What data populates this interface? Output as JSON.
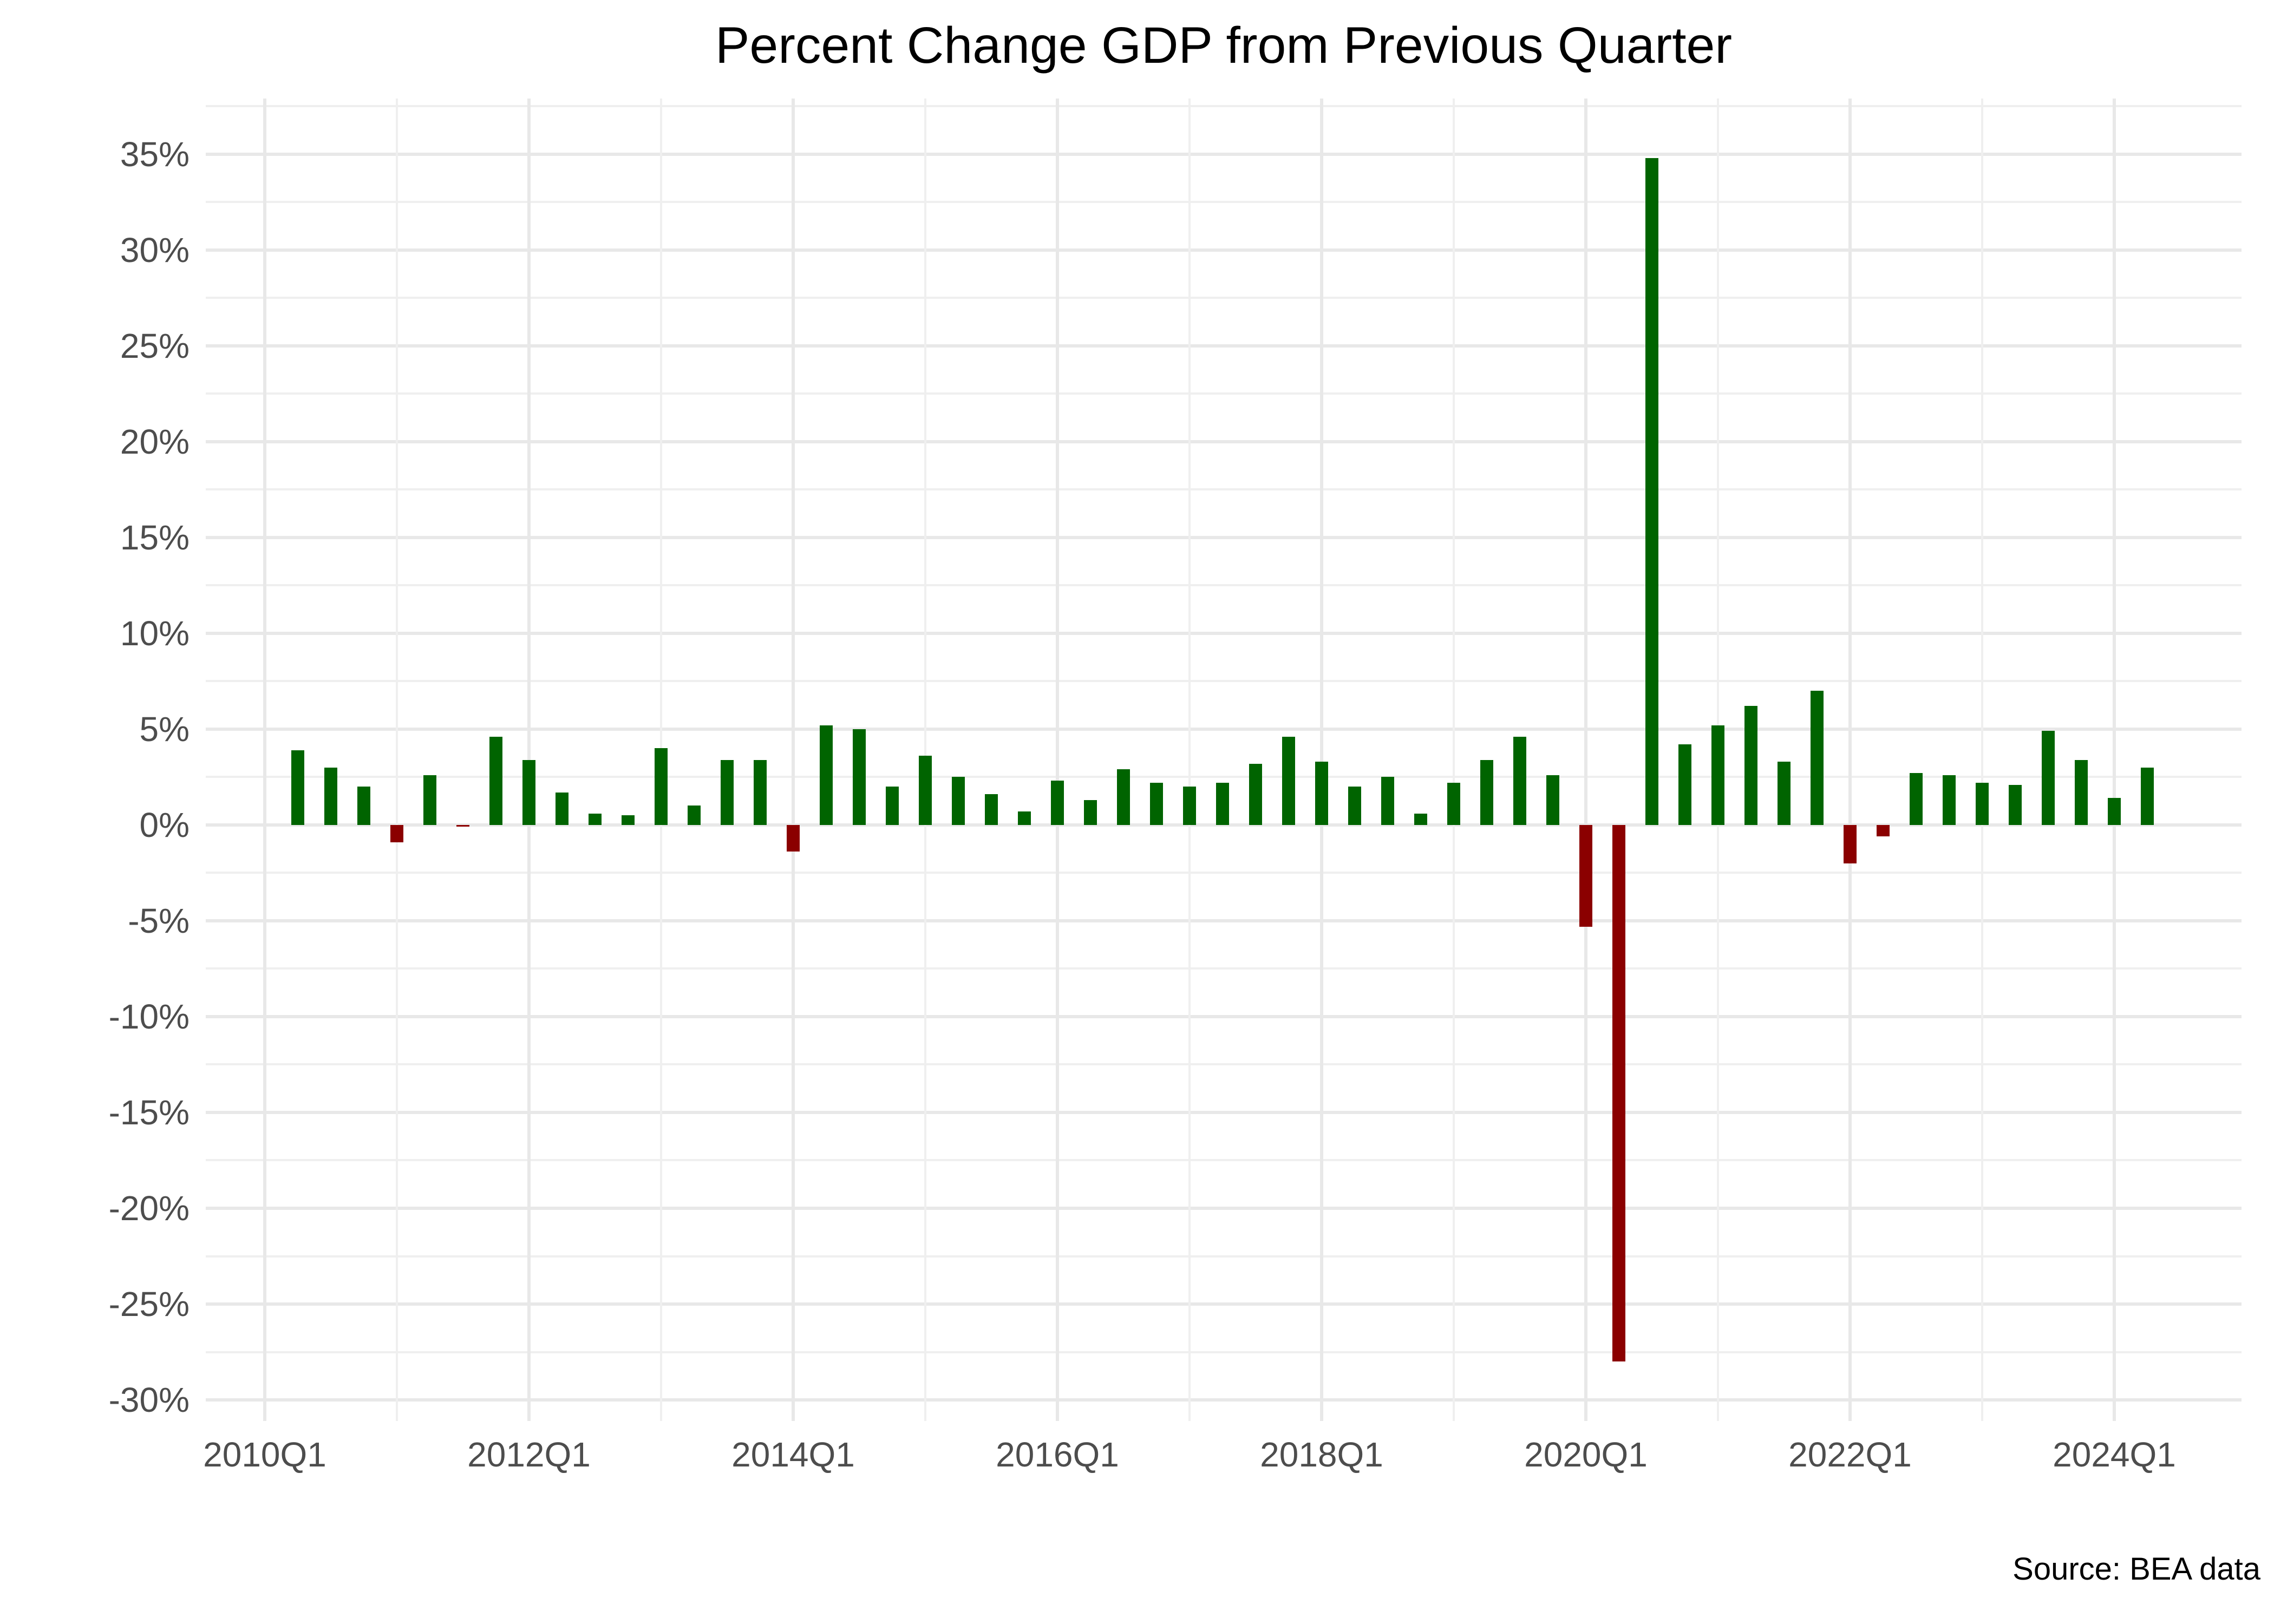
{
  "figure": {
    "title": "Percent Change GDP from Previous Quarter",
    "source_note": "Source: BEA data"
  },
  "colors": {
    "positive_bar": "#006400",
    "negative_bar": "#8b0000",
    "grid_major": "#e8e8e8",
    "grid_minor": "#efefef",
    "axis_text": "#4d4d4d",
    "title_text": "#000000",
    "background": "#ffffff"
  },
  "chart_data": {
    "type": "bar",
    "title": "Percent Change GDP from Previous Quarter",
    "xlabel": "",
    "ylabel": "",
    "grid": true,
    "legend": false,
    "ylim": [
      -31.1,
      37.9
    ],
    "y_axis": {
      "tick_values": [
        35,
        30,
        25,
        20,
        15,
        10,
        5,
        0,
        -5,
        -10,
        -15,
        -20,
        -25,
        -30
      ],
      "tick_labels": [
        "35%",
        "30%",
        "25%",
        "20%",
        "15%",
        "10%",
        "5%",
        "0%",
        "-5%",
        "-10%",
        "-15%",
        "-20%",
        "-25%",
        "-30%"
      ],
      "minor_tick_values": [
        37.5,
        32.5,
        27.5,
        22.5,
        17.5,
        12.5,
        7.5,
        2.5,
        -2.5,
        -7.5,
        -12.5,
        -17.5,
        -22.5,
        -27.5
      ]
    },
    "x_axis": {
      "tick_labels": [
        "2010Q1",
        "2012Q1",
        "2014Q1",
        "2016Q1",
        "2018Q1",
        "2020Q1",
        "2022Q1",
        "2024Q1"
      ],
      "minor_tick_years": [
        "2011Q1",
        "2013Q1",
        "2015Q1",
        "2017Q1",
        "2019Q1",
        "2021Q1",
        "2023Q1"
      ]
    },
    "series_name": "Percent change of GDP from previous quarter",
    "categories": [
      "2010Q2",
      "2010Q3",
      "2010Q4",
      "2011Q1",
      "2011Q2",
      "2011Q3",
      "2011Q4",
      "2012Q1",
      "2012Q2",
      "2012Q3",
      "2012Q4",
      "2013Q1",
      "2013Q2",
      "2013Q3",
      "2013Q4",
      "2014Q1",
      "2014Q2",
      "2014Q3",
      "2014Q4",
      "2015Q1",
      "2015Q2",
      "2015Q3",
      "2015Q4",
      "2016Q1",
      "2016Q2",
      "2016Q3",
      "2016Q4",
      "2017Q1",
      "2017Q2",
      "2017Q3",
      "2017Q4",
      "2018Q1",
      "2018Q2",
      "2018Q3",
      "2018Q4",
      "2019Q1",
      "2019Q2",
      "2019Q3",
      "2019Q4",
      "2020Q1",
      "2020Q2",
      "2020Q3",
      "2020Q4",
      "2021Q1",
      "2021Q2",
      "2021Q3",
      "2021Q4",
      "2022Q1",
      "2022Q2",
      "2022Q3",
      "2022Q4",
      "2023Q1",
      "2023Q2",
      "2023Q3",
      "2023Q4",
      "2024Q1",
      "2024Q2"
    ],
    "values": [
      3.9,
      3.0,
      2.0,
      -0.9,
      2.6,
      -0.1,
      4.6,
      3.4,
      1.7,
      0.6,
      0.5,
      4.0,
      1.0,
      3.4,
      3.4,
      -1.4,
      5.2,
      5.0,
      2.0,
      3.6,
      2.5,
      1.6,
      0.7,
      2.3,
      1.3,
      2.9,
      2.2,
      2.0,
      2.2,
      3.2,
      4.6,
      3.3,
      2.0,
      2.5,
      0.6,
      2.2,
      3.4,
      4.6,
      2.6,
      -5.3,
      -28.0,
      34.8,
      4.2,
      5.2,
      6.2,
      3.3,
      7.0,
      -2.0,
      -0.6,
      2.7,
      2.6,
      2.2,
      2.1,
      4.9,
      3.4,
      1.4,
      3.0
    ]
  }
}
